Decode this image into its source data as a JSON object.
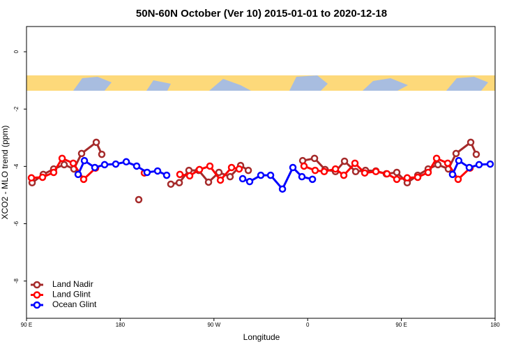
{
  "chart_data": {
    "type": "line",
    "title": "50N-60N October (Ver 10)   2015-01-01 to 2020-12-18",
    "x_label": "Longitude",
    "y_label": "XCO2 - MLO trend (ppm)",
    "xlim": [
      90,
      540
    ],
    "ylim": [
      -9.3,
      0.88
    ],
    "xticks": [
      {
        "value": 90,
        "label": "90 E"
      },
      180,
      {
        "value": 270,
        "label": "90 W"
      },
      {
        "value": 360,
        "label": "0"
      },
      {
        "value": 450,
        "label": "90 E"
      },
      {
        "value": 540,
        "label": "180"
      }
    ],
    "yticks": [
      0,
      -2,
      -4,
      -6,
      -8
    ],
    "legend": "bottom-left",
    "series": [
      {
        "name": "Land Nadir",
        "color": "#a52a2a",
        "x": [
          95.4,
          106.1,
          116.1,
          126.2,
          135.5,
          142.9,
          157,
          162.3,
          null,
          197.8,
          null,
          228.6,
          236.7,
          246,
          255.4,
          264.8,
          274.8,
          285.5,
          295.6,
          303,
          null,
          355.2,
          366.6,
          376.7,
          386.7,
          395.4,
          406.1,
          415.5,
          425.5,
          435.5,
          445.6,
          455.6,
          465.7,
          475.7,
          485.1,
          495.1,
          502.5,
          516.6,
          521.9
        ],
        "values": [
          -4.57,
          -4.28,
          -4.09,
          -3.94,
          -4.09,
          -3.55,
          -3.16,
          -3.58,
          null,
          -5.16,
          null,
          -4.62,
          -4.57,
          -4.14,
          -4.14,
          -4.55,
          -4.21,
          -4.36,
          -3.97,
          -4.14,
          null,
          -3.8,
          -3.72,
          -4.11,
          -4.18,
          -3.82,
          -4.18,
          -4.14,
          -4.16,
          -4.26,
          -4.21,
          -4.57,
          -4.31,
          -4.09,
          -3.94,
          -4.09,
          -3.55,
          -3.16,
          -3.58
        ]
      },
      {
        "name": "Land Glint",
        "color": "#ff0000",
        "x": [
          94.7,
          105.4,
          116.1,
          124.2,
          134.9,
          144.9,
          156.3,
          null,
          203.2,
          null,
          237.3,
          246.7,
          256.1,
          266.1,
          276.2,
          286.9,
          294.2,
          null,
          356.5,
          367.2,
          375.9,
          386.7,
          394.7,
          405.4,
          414.8,
          425.5,
          436.2,
          445.6,
          455.6,
          465.7,
          475.7,
          483.8,
          494.5,
          504.5,
          515.9
        ],
        "values": [
          -4.4,
          -4.38,
          -4.21,
          -3.72,
          -3.89,
          -4.45,
          -4.06,
          null,
          -4.23,
          null,
          -4.28,
          -4.33,
          -4.11,
          -3.99,
          -4.48,
          -4.04,
          -4.09,
          null,
          -3.99,
          -4.14,
          -4.18,
          -4.09,
          -4.31,
          -3.89,
          -4.23,
          -4.18,
          -4.26,
          -4.45,
          -4.4,
          -4.38,
          -4.21,
          -3.72,
          -3.89,
          -4.45,
          -4.06
        ]
      },
      {
        "name": "Ocean Glint",
        "color": "#0000ff",
        "x": [
          139.6,
          145.6,
          155.6,
          165,
          175.7,
          185.8,
          195.8,
          205.8,
          215.9,
          224.6,
          null,
          297.6,
          304.3,
          315,
          324.4,
          335.8,
          345.8,
          354.5,
          364.6,
          null,
          499.1,
          505.1,
          515.2,
          524.6,
          535.3
        ],
        "values": [
          -4.28,
          -3.8,
          -4.04,
          -3.94,
          -3.92,
          -3.84,
          -3.99,
          -4.21,
          -4.16,
          -4.31,
          null,
          -4.43,
          -4.53,
          -4.31,
          -4.31,
          -4.79,
          -4.04,
          -4.36,
          -4.45,
          null,
          -4.28,
          -3.8,
          -4.04,
          -3.94,
          -3.92
        ]
      }
    ]
  }
}
